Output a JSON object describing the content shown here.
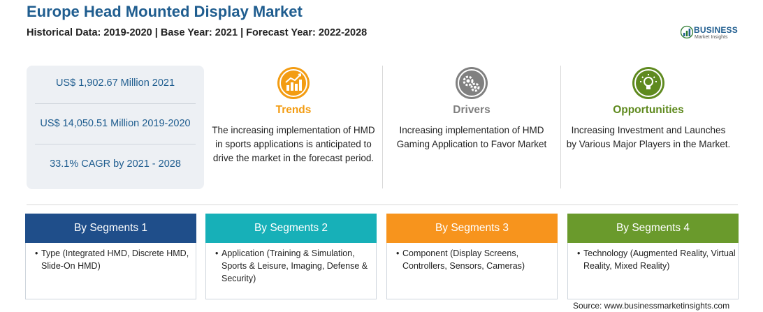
{
  "header": {
    "title": "Europe Head Mounted Display Market",
    "subtitle": "Historical Data: 2019-2020 | Base Year: 2021 | Forecast Year: 2022-2028"
  },
  "logo": {
    "line1": "BUSINESS",
    "line2": "Market Insights",
    "icon": "bar-chart-logo-icon"
  },
  "stats": [
    "US$ 1,902.67 Million 2021",
    "US$ 14,050.51 Million 2019-2020",
    "33.1% CAGR by 2021 - 2028"
  ],
  "columns": [
    {
      "heading": "Trends",
      "text": "The increasing implementation of HMD in sports applications is anticipated to drive the market in the forecast period.",
      "color": "#f39c12",
      "icon": "trend-chart-icon"
    },
    {
      "heading": "Drivers",
      "text": "Increasing implementation of HMD Gaming Application to Favor Market",
      "color": "#7f7f7f",
      "icon": "gears-icon"
    },
    {
      "heading": "Opportunities",
      "text": "Increasing Investment and Launches by Various Major Players in the Market.",
      "color": "#5f8a1f",
      "icon": "lightbulb-icon"
    }
  ],
  "segments": [
    {
      "title": "By Segments 1",
      "bullet": "•",
      "text": "Type (Integrated HMD, Discrete HMD, Slide-On HMD)",
      "color": "#1f4e8a"
    },
    {
      "title": "By Segments 2",
      "bullet": "•",
      "text": "Application (Training & Simulation, Sports & Leisure, Imaging, Defense & Security)",
      "color": "#17b0b8"
    },
    {
      "title": "By Segments 3",
      "bullet": "•",
      "text": "Component (Display Screens, Controllers, Sensors, Cameras)",
      "color": "#f7941d"
    },
    {
      "title": "By Segments 4",
      "bullet": "•",
      "text": "Technology (Augmented Reality, Virtual Reality, Mixed Reality)",
      "color": "#6a9a2c"
    }
  ],
  "source": "Source: www.businessmarketinsights.com"
}
